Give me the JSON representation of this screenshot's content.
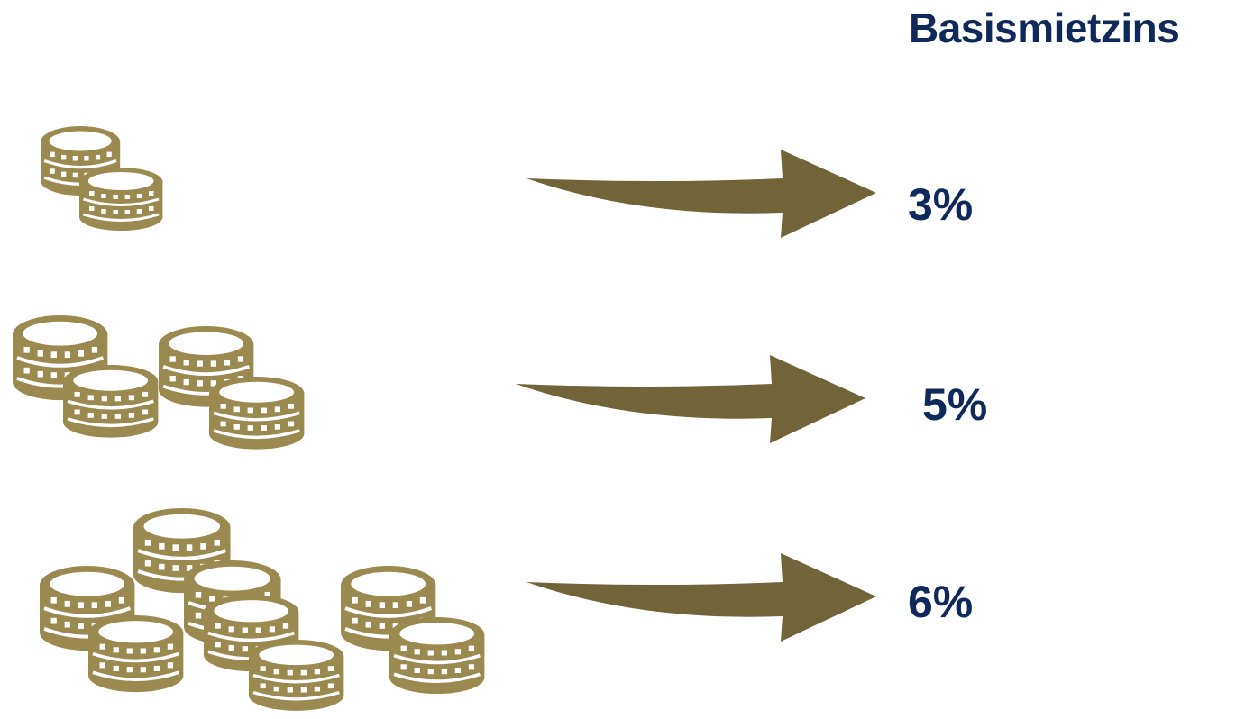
{
  "title": "Basismietzins",
  "colors": {
    "coin": "#9b8a4f",
    "arrow": "#716439",
    "text": "#0f2a5a",
    "background": "#ffffff"
  },
  "icons": [
    "coin-stack-icon",
    "arrow-right-icon"
  ],
  "rows": [
    {
      "coin_stacks": 2,
      "rate": "3%"
    },
    {
      "coin_stacks": 4,
      "rate": "5%"
    },
    {
      "coin_stacks": 8,
      "rate": "6%"
    }
  ]
}
